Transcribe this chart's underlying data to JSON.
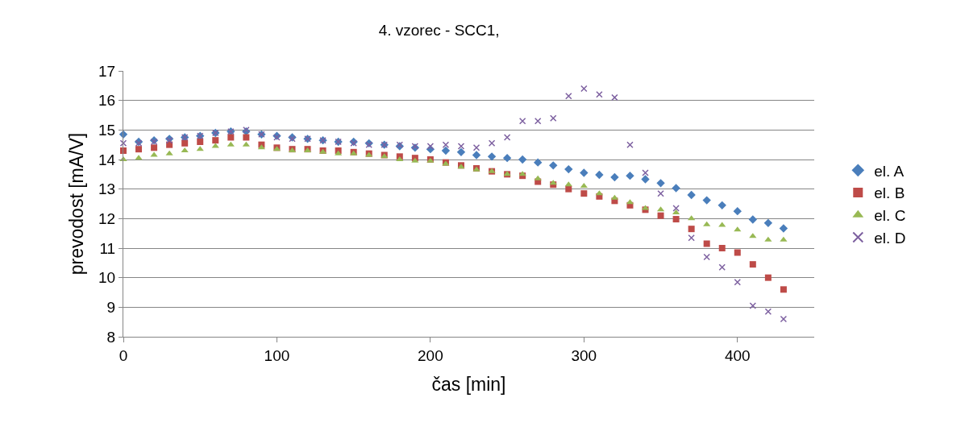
{
  "chart_data": {
    "type": "scatter",
    "title": "4. vzorec - SCC1,",
    "xlabel": "čas [min]",
    "ylabel": "prevodost [mA/V]",
    "x": [
      0,
      10,
      20,
      30,
      40,
      50,
      60,
      70,
      80,
      90,
      100,
      110,
      120,
      130,
      140,
      150,
      160,
      170,
      180,
      190,
      200,
      210,
      220,
      230,
      240,
      250,
      260,
      270,
      280,
      290,
      300,
      310,
      320,
      330,
      340,
      350,
      360,
      370,
      380,
      390,
      400,
      410,
      420,
      430
    ],
    "series": [
      {
        "name": "el. A",
        "color": "#4a7ebb",
        "marker": "diamond",
        "values": [
          14.85,
          14.6,
          14.65,
          14.7,
          14.75,
          14.8,
          14.9,
          14.95,
          14.95,
          14.85,
          14.8,
          14.75,
          14.7,
          14.65,
          14.6,
          14.6,
          14.55,
          14.5,
          14.45,
          14.4,
          14.35,
          14.3,
          14.25,
          14.15,
          14.1,
          14.05,
          14.0,
          13.9,
          13.8,
          13.67,
          13.55,
          13.48,
          13.4,
          13.45,
          13.33,
          13.2,
          13.03,
          12.8,
          12.62,
          12.45,
          12.25,
          11.97,
          11.85,
          11.67
        ]
      },
      {
        "name": "el. B",
        "color": "#be4b48",
        "marker": "square",
        "values": [
          14.3,
          14.35,
          14.4,
          14.5,
          14.55,
          14.6,
          14.65,
          14.75,
          14.75,
          14.5,
          14.4,
          14.35,
          14.35,
          14.3,
          14.3,
          14.25,
          14.2,
          14.15,
          14.1,
          14.05,
          14.0,
          13.9,
          13.8,
          13.7,
          13.6,
          13.5,
          13.45,
          13.25,
          13.15,
          13.0,
          12.85,
          12.75,
          12.6,
          12.45,
          12.3,
          12.1,
          11.98,
          11.65,
          11.15,
          11.0,
          10.85,
          10.45,
          10.0,
          9.6
        ]
      },
      {
        "name": "el. C",
        "color": "#98b954",
        "marker": "triangle",
        "values": [
          14.0,
          14.05,
          14.15,
          14.2,
          14.3,
          14.35,
          14.45,
          14.5,
          14.5,
          14.4,
          14.35,
          14.3,
          14.3,
          14.25,
          14.2,
          14.2,
          14.15,
          14.1,
          14.0,
          13.95,
          13.95,
          13.85,
          13.75,
          13.65,
          13.6,
          13.5,
          13.5,
          13.35,
          13.2,
          13.15,
          13.1,
          12.85,
          12.7,
          12.55,
          12.35,
          12.3,
          12.2,
          12.0,
          11.8,
          11.78,
          11.62,
          11.4,
          11.28,
          11.28
        ]
      },
      {
        "name": "el. D",
        "color": "#7d60a0",
        "marker": "cross",
        "values": [
          14.55,
          14.55,
          14.6,
          14.65,
          14.75,
          14.8,
          14.9,
          14.95,
          15.0,
          14.85,
          14.75,
          14.7,
          14.7,
          14.65,
          14.6,
          14.55,
          14.5,
          14.5,
          14.5,
          14.45,
          14.45,
          14.5,
          14.45,
          14.4,
          14.55,
          14.75,
          15.3,
          15.3,
          15.4,
          16.15,
          16.4,
          16.2,
          16.1,
          14.5,
          13.55,
          12.85,
          12.35,
          11.35,
          10.7,
          10.35,
          9.85,
          9.05,
          8.85,
          8.6
        ]
      }
    ],
    "xlim": [
      0,
      450
    ],
    "xticks": [
      0,
      100,
      200,
      300,
      400
    ],
    "ylim": [
      8,
      17
    ],
    "yticks": [
      8,
      9,
      10,
      11,
      12,
      13,
      14,
      15,
      16,
      17
    ],
    "grid": "y",
    "legend": "right"
  }
}
